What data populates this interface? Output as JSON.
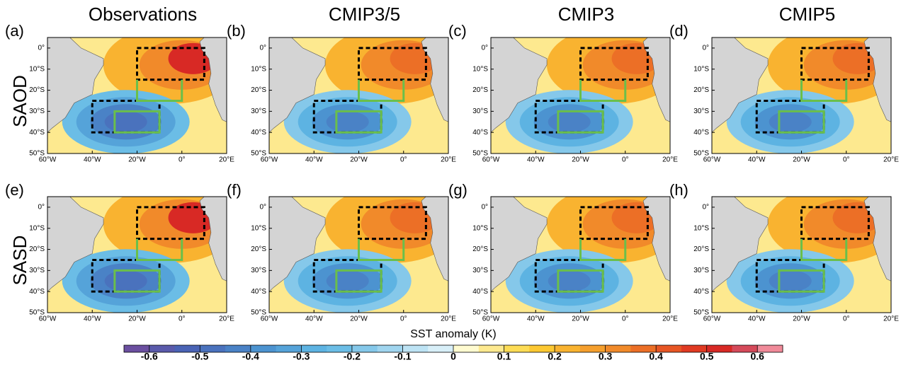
{
  "column_titles": [
    "Observations",
    "CMIP3/5",
    "CMIP3",
    "CMIP5"
  ],
  "row_labels": [
    "SAOD",
    "SASD"
  ],
  "panel_labels": [
    "(a)",
    "(b)",
    "(c)",
    "(d)",
    "(e)",
    "(f)",
    "(g)",
    "(h)"
  ],
  "lon_ticks": [
    "60°W",
    "40°W",
    "20°W",
    "0°",
    "20°E"
  ],
  "lat_ticks": [
    "0°",
    "10°S",
    "20°S",
    "30°S",
    "40°S",
    "50°S"
  ],
  "colorbar": {
    "label": "SST anomaly (K)",
    "lim": [
      -0.65,
      0.65
    ],
    "ticks": [
      -0.6,
      -0.5,
      -0.4,
      -0.3,
      -0.2,
      -0.1,
      0,
      0.1,
      0.2,
      0.3,
      0.4,
      0.5,
      0.6
    ],
    "colors": [
      "#6b4fa0",
      "#5a5aab",
      "#4a63b5",
      "#4a72bd",
      "#4a82c6",
      "#4c93d0",
      "#55a3d9",
      "#5db3e2",
      "#6bbde6",
      "#85c8ea",
      "#a0d5ef",
      "#bde3f4",
      "#d8eff8",
      "#fffbd0",
      "#fde98f",
      "#fddc55",
      "#fcc832",
      "#f9b330",
      "#f59f2d",
      "#f18a2a",
      "#ec6f26",
      "#e75624",
      "#e03a22",
      "#d82925",
      "#d54a5a",
      "#f08a99"
    ]
  }
}
